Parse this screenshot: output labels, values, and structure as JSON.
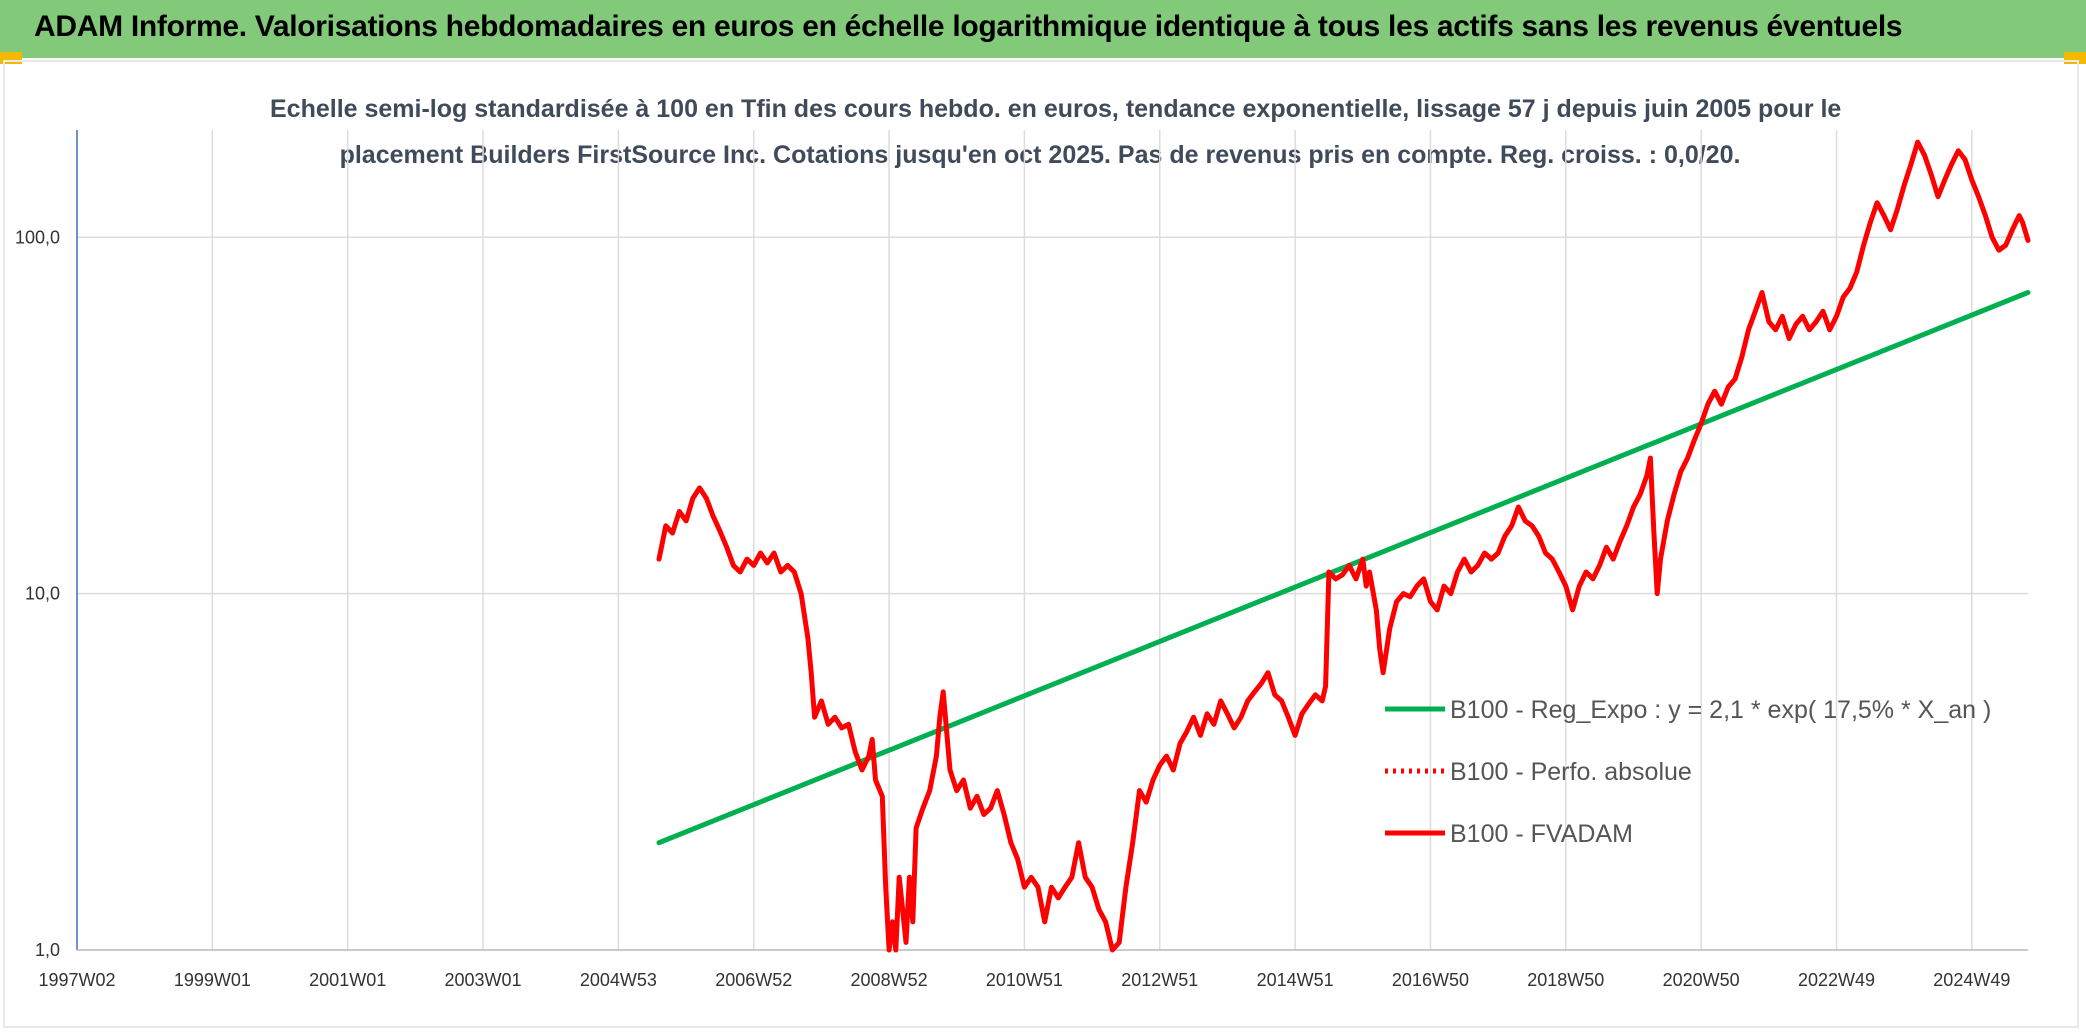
{
  "header": {
    "title": "ADAM Informe. Valorisations hebdomadaires en euros en échelle logarithmique identique à tous les actifs sans les revenus éventuels"
  },
  "chart_data": {
    "type": "line",
    "title_lines": [
      "Echelle semi-log standardisée à 100 en Tfin des cours hebdo. en euros, tendance exponentielle, lissage 57 j depuis juin 2005 pour le",
      "placement Builders FirstSource Inc. Cotations jusqu'en oct 2025. Pas de revenus pris en compte. Reg. croiss. : 0,0/20."
    ],
    "y_scale": "log",
    "ylim": [
      1,
      200
    ],
    "y_ticks": [
      "1,0",
      "10,0",
      "100,0"
    ],
    "y_tick_values": [
      1,
      10,
      100
    ],
    "xlim": [
      1997.0,
      2025.83
    ],
    "x_ticks": [
      {
        "label": "1997W02",
        "x": 1997.0
      },
      {
        "label": "1999W01",
        "x": 1999.0
      },
      {
        "label": "2001W01",
        "x": 2001.0
      },
      {
        "label": "2003W01",
        "x": 2003.0
      },
      {
        "label": "2004W53",
        "x": 2005.0
      },
      {
        "label": "2006W52",
        "x": 2007.0
      },
      {
        "label": "2008W52",
        "x": 2009.0
      },
      {
        "label": "2010W51",
        "x": 2011.0
      },
      {
        "label": "2012W51",
        "x": 2013.0
      },
      {
        "label": "2014W51",
        "x": 2015.0
      },
      {
        "label": "2016W50",
        "x": 2017.0
      },
      {
        "label": "2018W50",
        "x": 2019.0
      },
      {
        "label": "2020W50",
        "x": 2021.0
      },
      {
        "label": "2022W49",
        "x": 2023.0
      },
      {
        "label": "2024W49",
        "x": 2025.0
      }
    ],
    "grid": "vertical and horizontal",
    "legend_position": "bottom-right",
    "series": [
      {
        "name": "B100 - Reg_Expo : y = 2,1 * exp( 17,5% *  X_an )",
        "color": "#00b050",
        "style": "solid",
        "points": [
          [
            2005.6,
            2.0
          ],
          [
            2025.83,
            70.0
          ]
        ]
      },
      {
        "name": "B100 - Perfo. absolue",
        "color": "#ff0000",
        "style": "dotted",
        "points": []
      },
      {
        "name": "B100 - FVADAM",
        "color": "#ff0000",
        "style": "solid",
        "points": [
          [
            2005.6,
            12.5
          ],
          [
            2005.7,
            15.5
          ],
          [
            2005.8,
            14.8
          ],
          [
            2005.9,
            17.0
          ],
          [
            2006.0,
            16.0
          ],
          [
            2006.1,
            18.5
          ],
          [
            2006.2,
            19.8
          ],
          [
            2006.3,
            18.5
          ],
          [
            2006.4,
            16.5
          ],
          [
            2006.5,
            15.0
          ],
          [
            2006.6,
            13.5
          ],
          [
            2006.7,
            12.0
          ],
          [
            2006.8,
            11.5
          ],
          [
            2006.9,
            12.5
          ],
          [
            2007.0,
            12.0
          ],
          [
            2007.1,
            13.0
          ],
          [
            2007.2,
            12.2
          ],
          [
            2007.3,
            13.0
          ],
          [
            2007.4,
            11.5
          ],
          [
            2007.5,
            12.0
          ],
          [
            2007.6,
            11.5
          ],
          [
            2007.7,
            10.0
          ],
          [
            2007.8,
            7.5
          ],
          [
            2007.85,
            6.0
          ],
          [
            2007.9,
            4.5
          ],
          [
            2008.0,
            5.0
          ],
          [
            2008.1,
            4.3
          ],
          [
            2008.2,
            4.5
          ],
          [
            2008.3,
            4.2
          ],
          [
            2008.4,
            4.3
          ],
          [
            2008.5,
            3.6
          ],
          [
            2008.6,
            3.2
          ],
          [
            2008.7,
            3.5
          ],
          [
            2008.75,
            3.9
          ],
          [
            2008.8,
            3.0
          ],
          [
            2008.9,
            2.7
          ],
          [
            2008.95,
            1.5
          ],
          [
            2009.0,
            1.0
          ],
          [
            2009.05,
            1.2
          ],
          [
            2009.1,
            1.0
          ],
          [
            2009.15,
            1.6
          ],
          [
            2009.2,
            1.3
          ],
          [
            2009.25,
            1.05
          ],
          [
            2009.3,
            1.6
          ],
          [
            2009.35,
            1.2
          ],
          [
            2009.4,
            2.2
          ],
          [
            2009.5,
            2.5
          ],
          [
            2009.6,
            2.8
          ],
          [
            2009.7,
            3.5
          ],
          [
            2009.75,
            4.5
          ],
          [
            2009.8,
            5.3
          ],
          [
            2009.9,
            3.2
          ],
          [
            2010.0,
            2.8
          ],
          [
            2010.1,
            3.0
          ],
          [
            2010.2,
            2.5
          ],
          [
            2010.3,
            2.7
          ],
          [
            2010.4,
            2.4
          ],
          [
            2010.5,
            2.5
          ],
          [
            2010.6,
            2.8
          ],
          [
            2010.7,
            2.4
          ],
          [
            2010.8,
            2.0
          ],
          [
            2010.9,
            1.8
          ],
          [
            2011.0,
            1.5
          ],
          [
            2011.1,
            1.6
          ],
          [
            2011.2,
            1.5
          ],
          [
            2011.3,
            1.2
          ],
          [
            2011.4,
            1.5
          ],
          [
            2011.5,
            1.4
          ],
          [
            2011.6,
            1.5
          ],
          [
            2011.7,
            1.6
          ],
          [
            2011.8,
            2.0
          ],
          [
            2011.9,
            1.6
          ],
          [
            2012.0,
            1.5
          ],
          [
            2012.1,
            1.3
          ],
          [
            2012.2,
            1.2
          ],
          [
            2012.3,
            1.0
          ],
          [
            2012.4,
            1.05
          ],
          [
            2012.5,
            1.5
          ],
          [
            2012.6,
            2.0
          ],
          [
            2012.7,
            2.8
          ],
          [
            2012.8,
            2.6
          ],
          [
            2012.9,
            3.0
          ],
          [
            2013.0,
            3.3
          ],
          [
            2013.1,
            3.5
          ],
          [
            2013.2,
            3.2
          ],
          [
            2013.3,
            3.8
          ],
          [
            2013.4,
            4.1
          ],
          [
            2013.5,
            4.5
          ],
          [
            2013.6,
            4.0
          ],
          [
            2013.7,
            4.6
          ],
          [
            2013.8,
            4.3
          ],
          [
            2013.9,
            5.0
          ],
          [
            2014.0,
            4.6
          ],
          [
            2014.1,
            4.2
          ],
          [
            2014.2,
            4.5
          ],
          [
            2014.3,
            5.0
          ],
          [
            2014.4,
            5.3
          ],
          [
            2014.5,
            5.6
          ],
          [
            2014.6,
            6.0
          ],
          [
            2014.7,
            5.2
          ],
          [
            2014.8,
            5.0
          ],
          [
            2014.9,
            4.5
          ],
          [
            2015.0,
            4.0
          ],
          [
            2015.1,
            4.6
          ],
          [
            2015.2,
            4.9
          ],
          [
            2015.3,
            5.2
          ],
          [
            2015.4,
            5.0
          ],
          [
            2015.45,
            5.5
          ],
          [
            2015.5,
            11.5
          ],
          [
            2015.6,
            11.0
          ],
          [
            2015.7,
            11.3
          ],
          [
            2015.8,
            12.0
          ],
          [
            2015.9,
            11.0
          ],
          [
            2016.0,
            12.5
          ],
          [
            2016.05,
            10.5
          ],
          [
            2016.1,
            11.5
          ],
          [
            2016.2,
            9.0
          ],
          [
            2016.25,
            7.0
          ],
          [
            2016.3,
            6.0
          ],
          [
            2016.4,
            8.0
          ],
          [
            2016.5,
            9.5
          ],
          [
            2016.6,
            10.0
          ],
          [
            2016.7,
            9.8
          ],
          [
            2016.8,
            10.5
          ],
          [
            2016.9,
            11.0
          ],
          [
            2017.0,
            9.5
          ],
          [
            2017.1,
            9.0
          ],
          [
            2017.2,
            10.5
          ],
          [
            2017.3,
            10.0
          ],
          [
            2017.4,
            11.5
          ],
          [
            2017.5,
            12.5
          ],
          [
            2017.6,
            11.5
          ],
          [
            2017.7,
            12.0
          ],
          [
            2017.8,
            13.0
          ],
          [
            2017.9,
            12.5
          ],
          [
            2018.0,
            13.0
          ],
          [
            2018.1,
            14.5
          ],
          [
            2018.2,
            15.5
          ],
          [
            2018.3,
            17.5
          ],
          [
            2018.4,
            16.0
          ],
          [
            2018.5,
            15.5
          ],
          [
            2018.6,
            14.5
          ],
          [
            2018.7,
            13.0
          ],
          [
            2018.8,
            12.5
          ],
          [
            2018.9,
            11.5
          ],
          [
            2019.0,
            10.5
          ],
          [
            2019.1,
            9.0
          ],
          [
            2019.2,
            10.5
          ],
          [
            2019.3,
            11.5
          ],
          [
            2019.4,
            11.0
          ],
          [
            2019.5,
            12.0
          ],
          [
            2019.6,
            13.5
          ],
          [
            2019.7,
            12.5
          ],
          [
            2019.8,
            14.0
          ],
          [
            2019.9,
            15.5
          ],
          [
            2020.0,
            17.5
          ],
          [
            2020.1,
            19.0
          ],
          [
            2020.2,
            21.5
          ],
          [
            2020.25,
            24.0
          ],
          [
            2020.3,
            15.0
          ],
          [
            2020.35,
            10.0
          ],
          [
            2020.4,
            12.5
          ],
          [
            2020.5,
            16.0
          ],
          [
            2020.6,
            19.0
          ],
          [
            2020.7,
            22.0
          ],
          [
            2020.8,
            24.0
          ],
          [
            2020.9,
            27.0
          ],
          [
            2021.0,
            30.0
          ],
          [
            2021.1,
            34.0
          ],
          [
            2021.2,
            37.0
          ],
          [
            2021.3,
            34.0
          ],
          [
            2021.4,
            38.0
          ],
          [
            2021.5,
            40.0
          ],
          [
            2021.6,
            46.0
          ],
          [
            2021.7,
            55.0
          ],
          [
            2021.8,
            62.0
          ],
          [
            2021.9,
            70.0
          ],
          [
            2022.0,
            58.0
          ],
          [
            2022.1,
            55.0
          ],
          [
            2022.2,
            60.0
          ],
          [
            2022.3,
            52.0
          ],
          [
            2022.4,
            57.0
          ],
          [
            2022.5,
            60.0
          ],
          [
            2022.6,
            55.0
          ],
          [
            2022.7,
            58.0
          ],
          [
            2022.8,
            62.0
          ],
          [
            2022.9,
            55.0
          ],
          [
            2023.0,
            60.0
          ],
          [
            2023.1,
            68.0
          ],
          [
            2023.2,
            72.0
          ],
          [
            2023.3,
            80.0
          ],
          [
            2023.4,
            95.0
          ],
          [
            2023.5,
            110.0
          ],
          [
            2023.6,
            125.0
          ],
          [
            2023.7,
            115.0
          ],
          [
            2023.8,
            105.0
          ],
          [
            2023.9,
            120.0
          ],
          [
            2024.0,
            140.0
          ],
          [
            2024.1,
            160.0
          ],
          [
            2024.2,
            185.0
          ],
          [
            2024.3,
            170.0
          ],
          [
            2024.4,
            150.0
          ],
          [
            2024.5,
            130.0
          ],
          [
            2024.6,
            145.0
          ],
          [
            2024.7,
            160.0
          ],
          [
            2024.8,
            175.0
          ],
          [
            2024.9,
            165.0
          ],
          [
            2025.0,
            145.0
          ],
          [
            2025.1,
            130.0
          ],
          [
            2025.2,
            115.0
          ],
          [
            2025.3,
            100.0
          ],
          [
            2025.4,
            92.0
          ],
          [
            2025.5,
            95.0
          ],
          [
            2025.6,
            105.0
          ],
          [
            2025.7,
            115.0
          ],
          [
            2025.75,
            110.0
          ],
          [
            2025.83,
            98.0
          ]
        ]
      }
    ]
  }
}
